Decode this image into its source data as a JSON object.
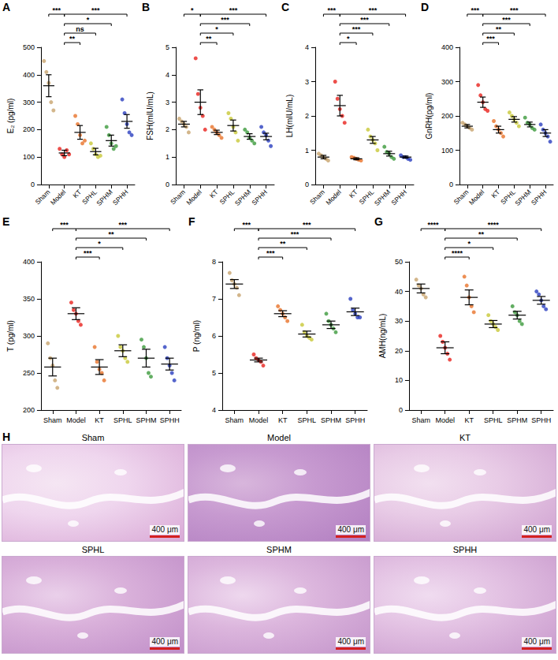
{
  "chart_data": [
    {
      "letter": "A",
      "type": "scatter",
      "ylabel": "E₂ (pg/ml)",
      "grid": false,
      "categories": [
        "Sham",
        "Model",
        "KT",
        "SPHL",
        "SPHM",
        "SPHH"
      ],
      "colors": [
        "#c8a46e",
        "#e8231e",
        "#e8732a",
        "#c8c837",
        "#3c9a3c",
        "#2a3fbf"
      ],
      "values": [
        360,
        115,
        190,
        120,
        160,
        230
      ],
      "errors": [
        40,
        10,
        25,
        12,
        20,
        25
      ],
      "points": [
        [
          450,
          410,
          370,
          300,
          270
        ],
        [
          130,
          110,
          100,
          125,
          110
        ],
        [
          250,
          220,
          180,
          150,
          160
        ],
        [
          150,
          130,
          110,
          100,
          105
        ],
        [
          210,
          180,
          150,
          130,
          140
        ],
        [
          310,
          260,
          220,
          190,
          180
        ]
      ],
      "ylim": [
        0,
        500
      ],
      "yticks": [
        0,
        100,
        200,
        300,
        400,
        500
      ],
      "comparisons": [
        {
          "a": "Sham",
          "b": "Model",
          "label": "***"
        },
        {
          "a": "Model",
          "b": "KT",
          "label": "**"
        },
        {
          "a": "Model",
          "b": "SPHL",
          "label": "ns"
        },
        {
          "a": "Model",
          "b": "SPHM",
          "label": "*"
        },
        {
          "a": "Model",
          "b": "SPHH",
          "label": "***"
        }
      ]
    },
    {
      "letter": "B",
      "type": "scatter",
      "ylabel": "FSH(mIU/mL)",
      "grid": false,
      "categories": [
        "Sham",
        "Model",
        "KT",
        "SPHL",
        "SPHM",
        "SPHH"
      ],
      "colors": [
        "#c8a46e",
        "#e8231e",
        "#e8732a",
        "#c8c837",
        "#3c9a3c",
        "#2a3fbf"
      ],
      "values": [
        2.2,
        3.0,
        1.9,
        2.15,
        1.75,
        1.75
      ],
      "errors": [
        0.1,
        0.45,
        0.08,
        0.2,
        0.1,
        0.12
      ],
      "points": [
        [
          2.4,
          2.3,
          2.2,
          2.1,
          1.9
        ],
        [
          4.6,
          3.3,
          2.8,
          2.5,
          2.0
        ],
        [
          2.1,
          2.0,
          1.9,
          1.8,
          1.7
        ],
        [
          2.6,
          2.4,
          2.1,
          1.9,
          1.6
        ],
        [
          2.0,
          1.9,
          1.7,
          1.6,
          1.5
        ],
        [
          2.1,
          1.9,
          1.8,
          1.6,
          1.4
        ]
      ],
      "ylim": [
        0,
        5
      ],
      "yticks": [
        0,
        1,
        2,
        3,
        4,
        5
      ],
      "comparisons": [
        {
          "a": "Sham",
          "b": "Model",
          "label": "*"
        },
        {
          "a": "Model",
          "b": "KT",
          "label": "**"
        },
        {
          "a": "Model",
          "b": "SPHL",
          "label": "*"
        },
        {
          "a": "Model",
          "b": "SPHM",
          "label": "***"
        },
        {
          "a": "Model",
          "b": "SPHH",
          "label": "***"
        }
      ]
    },
    {
      "letter": "C",
      "type": "scatter",
      "ylabel": "LH(mIU/mL)",
      "grid": false,
      "categories": [
        "Sham",
        "Model",
        "KT",
        "SPHL",
        "SPHM",
        "SPHH"
      ],
      "colors": [
        "#c8a46e",
        "#e8231e",
        "#e8732a",
        "#c8c837",
        "#3c9a3c",
        "#2a3fbf"
      ],
      "values": [
        0.8,
        2.3,
        0.75,
        1.3,
        0.9,
        0.8
      ],
      "errors": [
        0.05,
        0.3,
        0.03,
        0.1,
        0.07,
        0.03
      ],
      "points": [
        [
          0.9,
          0.85,
          0.8,
          0.75,
          0.7
        ],
        [
          3.0,
          2.5,
          2.2,
          2.0,
          1.8
        ],
        [
          0.8,
          0.78,
          0.75,
          0.72,
          0.7
        ],
        [
          1.6,
          1.4,
          1.3,
          1.2,
          1.0
        ],
        [
          1.1,
          0.95,
          0.9,
          0.8,
          0.75
        ],
        [
          0.85,
          0.8,
          0.8,
          0.75,
          0.72
        ]
      ],
      "ylim": [
        0,
        4
      ],
      "yticks": [
        0,
        1,
        2,
        3,
        4
      ],
      "comparisons": [
        {
          "a": "Sham",
          "b": "Model",
          "label": "***"
        },
        {
          "a": "Model",
          "b": "KT",
          "label": "*"
        },
        {
          "a": "Model",
          "b": "SPHL",
          "label": "***"
        },
        {
          "a": "Model",
          "b": "SPHM",
          "label": "***"
        },
        {
          "a": "Model",
          "b": "SPHH",
          "label": "***"
        }
      ]
    },
    {
      "letter": "D",
      "type": "scatter",
      "ylabel": "GnRH(pg/ml)",
      "grid": false,
      "categories": [
        "Sham",
        "Model",
        "KT",
        "SPHL",
        "SPHM",
        "SPHH"
      ],
      "colors": [
        "#c8a46e",
        "#e8231e",
        "#e8732a",
        "#c8c837",
        "#3c9a3c",
        "#2a3fbf"
      ],
      "values": [
        170,
        240,
        160,
        190,
        175,
        150
      ],
      "errors": [
        5,
        15,
        10,
        8,
        7,
        10
      ],
      "points": [
        [
          180,
          175,
          170,
          165,
          160
        ],
        [
          290,
          260,
          240,
          220,
          215
        ],
        [
          185,
          170,
          160,
          150,
          140
        ],
        [
          210,
          200,
          190,
          180,
          170
        ],
        [
          195,
          180,
          175,
          165,
          160
        ],
        [
          175,
          160,
          150,
          140,
          125
        ]
      ],
      "ylim": [
        0,
        400
      ],
      "yticks": [
        0,
        100,
        200,
        300,
        400
      ],
      "comparisons": [
        {
          "a": "Sham",
          "b": "Model",
          "label": "***"
        },
        {
          "a": "Model",
          "b": "KT",
          "label": "***"
        },
        {
          "a": "Model",
          "b": "SPHL",
          "label": "**"
        },
        {
          "a": "Model",
          "b": "SPHM",
          "label": "***"
        },
        {
          "a": "Model",
          "b": "SPHH",
          "label": "***"
        }
      ]
    },
    {
      "letter": "E",
      "type": "scatter",
      "ylabel": "T (pg/ml)",
      "grid": false,
      "categories": [
        "Sham",
        "Model",
        "KT",
        "SPHL",
        "SPHM",
        "SPHH"
      ],
      "colors": [
        "#c8a46e",
        "#e8231e",
        "#e8732a",
        "#c8c837",
        "#3c9a3c",
        "#2a3fbf"
      ],
      "values": [
        258,
        330,
        258,
        280,
        270,
        262
      ],
      "errors": [
        12,
        8,
        10,
        8,
        12,
        8
      ],
      "points": [
        [
          290,
          270,
          260,
          240,
          230
        ],
        [
          345,
          335,
          330,
          320,
          315
        ],
        [
          285,
          265,
          255,
          250,
          240
        ],
        [
          300,
          285,
          280,
          270,
          265
        ],
        [
          295,
          285,
          270,
          250,
          245
        ],
        [
          285,
          270,
          260,
          250,
          240
        ]
      ],
      "ylim": [
        200,
        400
      ],
      "yticks": [
        200,
        250,
        300,
        350,
        400
      ],
      "comparisons": [
        {
          "a": "Sham",
          "b": "Model",
          "label": "***"
        },
        {
          "a": "Model",
          "b": "KT",
          "label": "***"
        },
        {
          "a": "Model",
          "b": "SPHL",
          "label": "*"
        },
        {
          "a": "Model",
          "b": "SPHM",
          "label": "**"
        },
        {
          "a": "Model",
          "b": "SPHH",
          "label": "***"
        }
      ]
    },
    {
      "letter": "F",
      "type": "scatter",
      "ylabel": "P (ng/ml)",
      "grid": false,
      "categories": [
        "Sham",
        "Model",
        "KT",
        "SPHL",
        "SPHM",
        "SPHH"
      ],
      "colors": [
        "#c8a46e",
        "#e8231e",
        "#e8732a",
        "#c8c837",
        "#3c9a3c",
        "#2a3fbf"
      ],
      "values": [
        7.4,
        5.35,
        6.6,
        6.05,
        6.3,
        6.65
      ],
      "errors": [
        0.12,
        0.05,
        0.08,
        0.08,
        0.1,
        0.1
      ],
      "points": [
        [
          7.7,
          7.5,
          7.4,
          7.3,
          7.1
        ],
        [
          5.5,
          5.4,
          5.35,
          5.3,
          5.2
        ],
        [
          6.8,
          6.7,
          6.6,
          6.5,
          6.4
        ],
        [
          6.3,
          6.1,
          6.0,
          5.95,
          5.9
        ],
        [
          6.6,
          6.4,
          6.3,
          6.2,
          6.1
        ],
        [
          7.0,
          6.7,
          6.6,
          6.5,
          6.5
        ]
      ],
      "ylim": [
        4,
        8
      ],
      "yticks": [
        4,
        5,
        6,
        7,
        8
      ],
      "comparisons": [
        {
          "a": "Sham",
          "b": "Model",
          "label": "***"
        },
        {
          "a": "Model",
          "b": "KT",
          "label": "***"
        },
        {
          "a": "Model",
          "b": "SPHL",
          "label": "**"
        },
        {
          "a": "Model",
          "b": "SPHM",
          "label": "***"
        },
        {
          "a": "Model",
          "b": "SPHH",
          "label": "***"
        }
      ]
    },
    {
      "letter": "G",
      "type": "scatter",
      "ylabel": "AMH(ng/mL)",
      "grid": false,
      "categories": [
        "Sham",
        "Model",
        "KT",
        "SPHL",
        "SPHM",
        "SPHH"
      ],
      "colors": [
        "#c8a46e",
        "#e8231e",
        "#e8732a",
        "#c8c837",
        "#3c9a3c",
        "#2a3fbf"
      ],
      "values": [
        41,
        21,
        38,
        29,
        32,
        37
      ],
      "errors": [
        1.5,
        2,
        2.5,
        1.2,
        1.3,
        1.3
      ],
      "points": [
        [
          44,
          42,
          41,
          39,
          38
        ],
        [
          25,
          23,
          21,
          19,
          17
        ],
        [
          45,
          42,
          38,
          35,
          33
        ],
        [
          32,
          30,
          29,
          28,
          27
        ],
        [
          35,
          33,
          32,
          30,
          29
        ],
        [
          40,
          39,
          37,
          35,
          34
        ]
      ],
      "ylim": [
        0,
        50
      ],
      "yticks": [
        0,
        10,
        20,
        30,
        40,
        50
      ],
      "comparisons": [
        {
          "a": "Sham",
          "b": "Model",
          "label": "****"
        },
        {
          "a": "Model",
          "b": "KT",
          "label": "****"
        },
        {
          "a": "Model",
          "b": "SPHL",
          "label": "*"
        },
        {
          "a": "Model",
          "b": "SPHM",
          "label": "**"
        },
        {
          "a": "Model",
          "b": "SPHH",
          "label": "****"
        }
      ]
    }
  ],
  "histology": {
    "letter": "H",
    "panels": [
      {
        "title": "Sham",
        "scale_bar": "400 μm"
      },
      {
        "title": "Model",
        "scale_bar": "400 μm"
      },
      {
        "title": "KT",
        "scale_bar": "400 μm"
      },
      {
        "title": "SPHL",
        "scale_bar": "400 μm"
      },
      {
        "title": "SPHM",
        "scale_bar": "400 μm"
      },
      {
        "title": "SPHH",
        "scale_bar": "400 μm"
      }
    ]
  }
}
